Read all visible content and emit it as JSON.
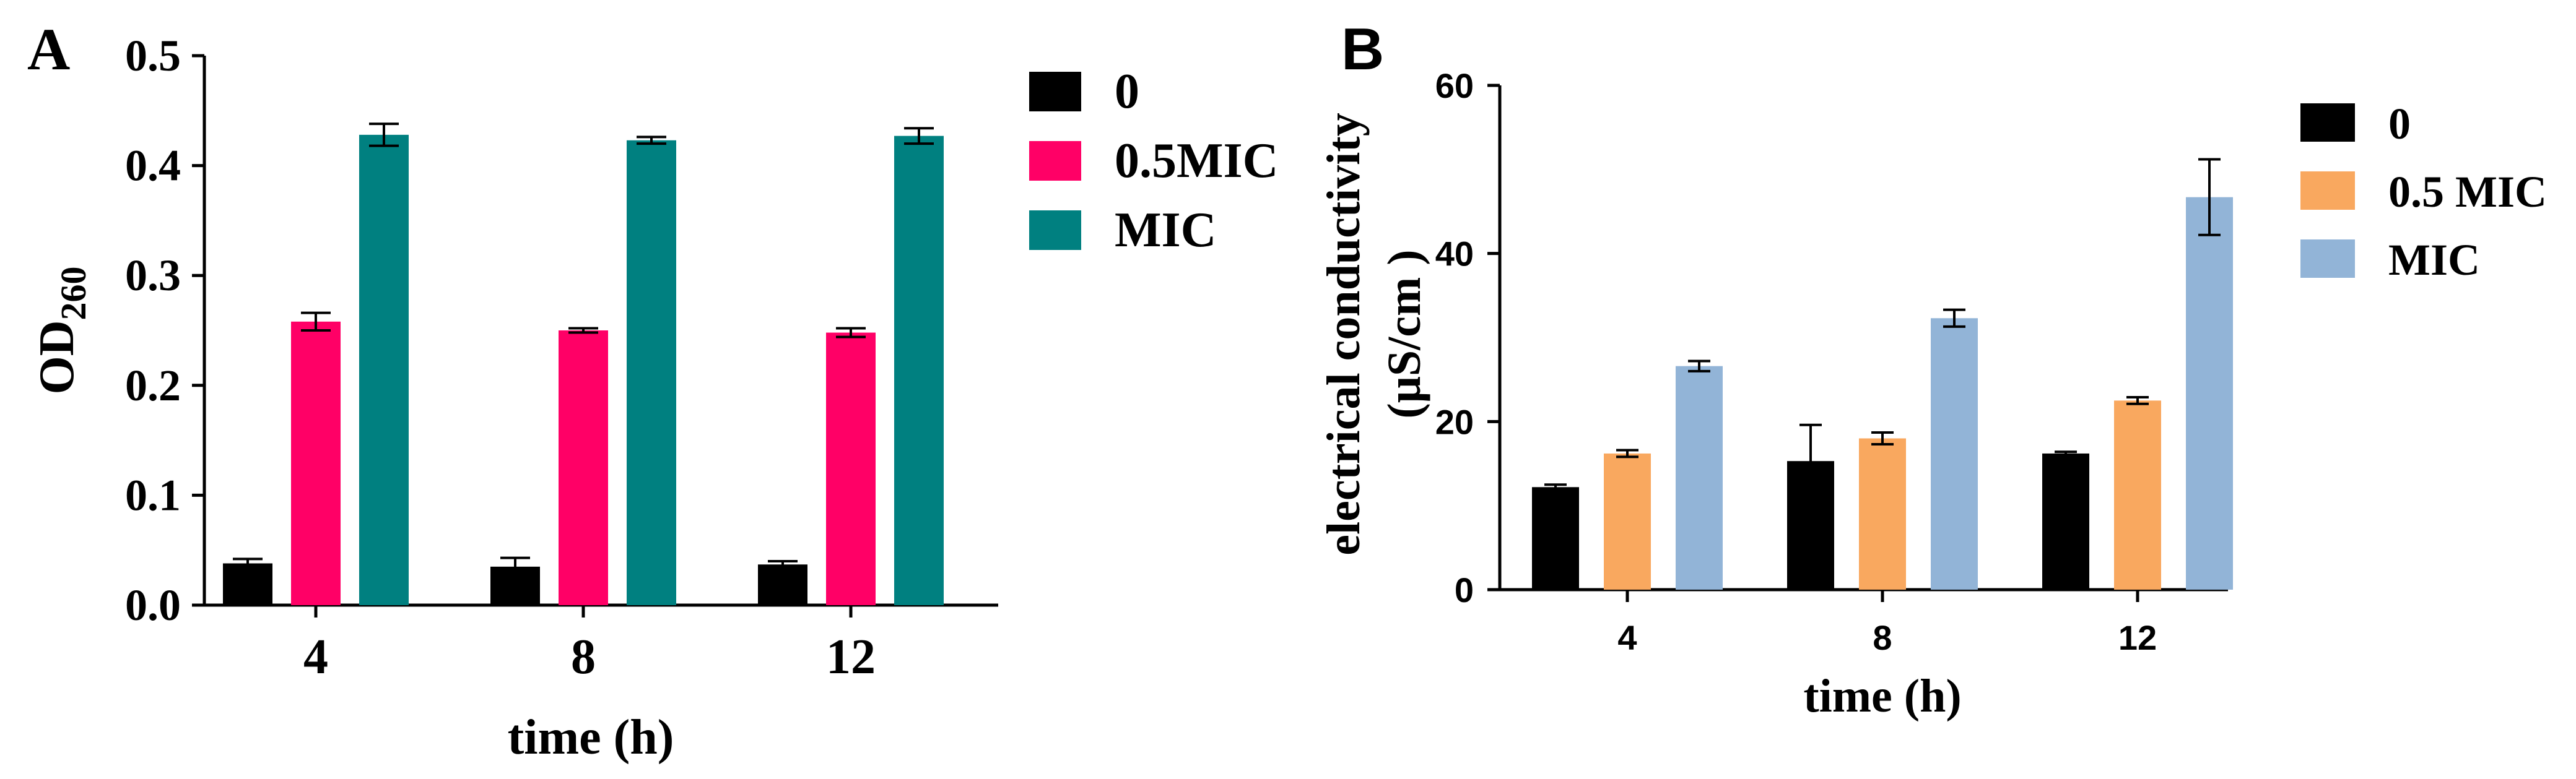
{
  "chart_data": [
    {
      "panel_label": "A",
      "type": "bar",
      "title": "",
      "xlabel": "time (h)",
      "ylabel": "OD",
      "ylabel_subscript": "260",
      "categories": [
        "4",
        "8",
        "12"
      ],
      "ylim": [
        0,
        0.5
      ],
      "yticks": [
        "0.0",
        "0.1",
        "0.2",
        "0.3",
        "0.4",
        "0.5"
      ],
      "series": [
        {
          "name": "0",
          "color": "#000000",
          "values": [
            0.038,
            0.035,
            0.037
          ],
          "errors": [
            0.004,
            0.008,
            0.003
          ]
        },
        {
          "name": "0.5MIC",
          "color": "#ff0066",
          "values": [
            0.258,
            0.25,
            0.248
          ],
          "errors": [
            0.008,
            0.002,
            0.004
          ]
        },
        {
          "name": "MIC",
          "color": "#008080",
          "values": [
            0.428,
            0.423,
            0.427
          ],
          "errors": [
            0.01,
            0.003,
            0.007
          ]
        }
      ],
      "legend_position": "top-right",
      "grid": false
    },
    {
      "panel_label": "B",
      "type": "bar",
      "title": "",
      "xlabel": "time (h)",
      "ylabel_line1": "electrical conductivity",
      "ylabel_line2": "(μS/cm )",
      "categories": [
        "4",
        "8",
        "12"
      ],
      "ylim": [
        0,
        60
      ],
      "yticks": [
        "0",
        "20",
        "40",
        "60"
      ],
      "series": [
        {
          "name": "0",
          "color": "#000000",
          "values": [
            12.2,
            15.3,
            16.2
          ],
          "errors": [
            0.3,
            4.3,
            0.2
          ]
        },
        {
          "name": "0.5 MIC",
          "color": "#f9a85f",
          "values": [
            16.2,
            18.0,
            22.5
          ],
          "errors": [
            0.4,
            0.7,
            0.4
          ]
        },
        {
          "name": "MIC",
          "color": "#92b4d7",
          "values": [
            26.6,
            32.3,
            46.7
          ],
          "errors": [
            0.6,
            1.0,
            4.5
          ]
        }
      ],
      "legend_position": "top-right",
      "grid": false
    }
  ]
}
